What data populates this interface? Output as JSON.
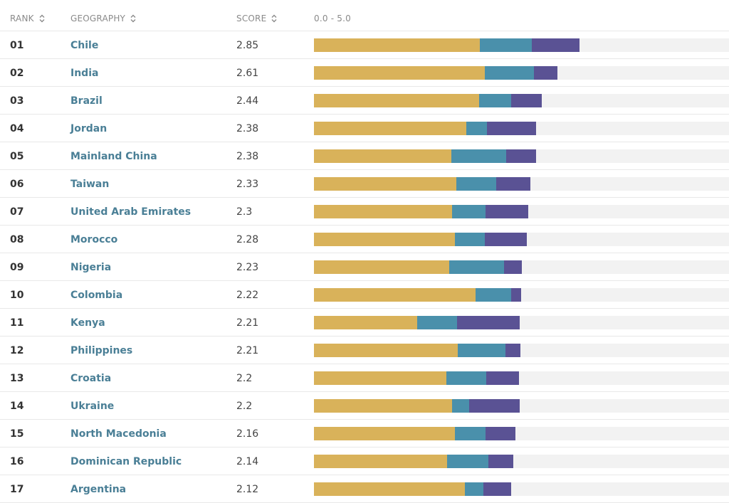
{
  "header": {
    "rank_label": "RANK",
    "geography_label": "GEOGRAPHY",
    "score_label": "SCORE",
    "range_label": "0.0 - 5.0"
  },
  "colors": {
    "seg1": "#d9b25a",
    "seg2": "#4a90ab",
    "seg3": "#5a5294",
    "track": "#f2f2f2",
    "link": "#4a7f96"
  },
  "scale_max": 5.0,
  "rows": [
    {
      "rank": "01",
      "geography": "Chile",
      "score": "2.85",
      "segments": [
        1.78,
        0.56,
        0.51
      ]
    },
    {
      "rank": "02",
      "geography": "India",
      "score": "2.61",
      "segments": [
        1.83,
        0.53,
        0.25
      ]
    },
    {
      "rank": "03",
      "geography": "Brazil",
      "score": "2.44",
      "segments": [
        1.77,
        0.34,
        0.33
      ]
    },
    {
      "rank": "04",
      "geography": "Jordan",
      "score": "2.38",
      "segments": [
        1.63,
        0.22,
        0.53
      ]
    },
    {
      "rank": "05",
      "geography": "Mainland China",
      "score": "2.38",
      "segments": [
        1.47,
        0.59,
        0.32
      ]
    },
    {
      "rank": "06",
      "geography": "Taiwan",
      "score": "2.33",
      "segments": [
        1.53,
        0.43,
        0.37
      ]
    },
    {
      "rank": "07",
      "geography": "United Arab Emirates",
      "score": "2.3",
      "segments": [
        1.48,
        0.36,
        0.46
      ]
    },
    {
      "rank": "08",
      "geography": "Morocco",
      "score": "2.28",
      "segments": [
        1.51,
        0.32,
        0.45
      ]
    },
    {
      "rank": "09",
      "geography": "Nigeria",
      "score": "2.23",
      "segments": [
        1.45,
        0.59,
        0.19
      ]
    },
    {
      "rank": "10",
      "geography": "Colombia",
      "score": "2.22",
      "segments": [
        1.73,
        0.38,
        0.11
      ]
    },
    {
      "rank": "11",
      "geography": "Kenya",
      "score": "2.21",
      "segments": [
        1.11,
        0.43,
        0.67
      ]
    },
    {
      "rank": "12",
      "geography": "Philippines",
      "score": "2.21",
      "segments": [
        1.54,
        0.51,
        0.16
      ]
    },
    {
      "rank": "13",
      "geography": "Croatia",
      "score": "2.2",
      "segments": [
        1.42,
        0.43,
        0.35
      ]
    },
    {
      "rank": "14",
      "geography": "Ukraine",
      "score": "2.2",
      "segments": [
        1.48,
        0.18,
        0.54
      ]
    },
    {
      "rank": "15",
      "geography": "North Macedonia",
      "score": "2.16",
      "segments": [
        1.51,
        0.33,
        0.32
      ]
    },
    {
      "rank": "16",
      "geography": "Dominican Republic",
      "score": "2.14",
      "segments": [
        1.43,
        0.44,
        0.27
      ]
    },
    {
      "rank": "17",
      "geography": "Argentina",
      "score": "2.12",
      "segments": [
        1.62,
        0.2,
        0.3
      ]
    }
  ]
}
